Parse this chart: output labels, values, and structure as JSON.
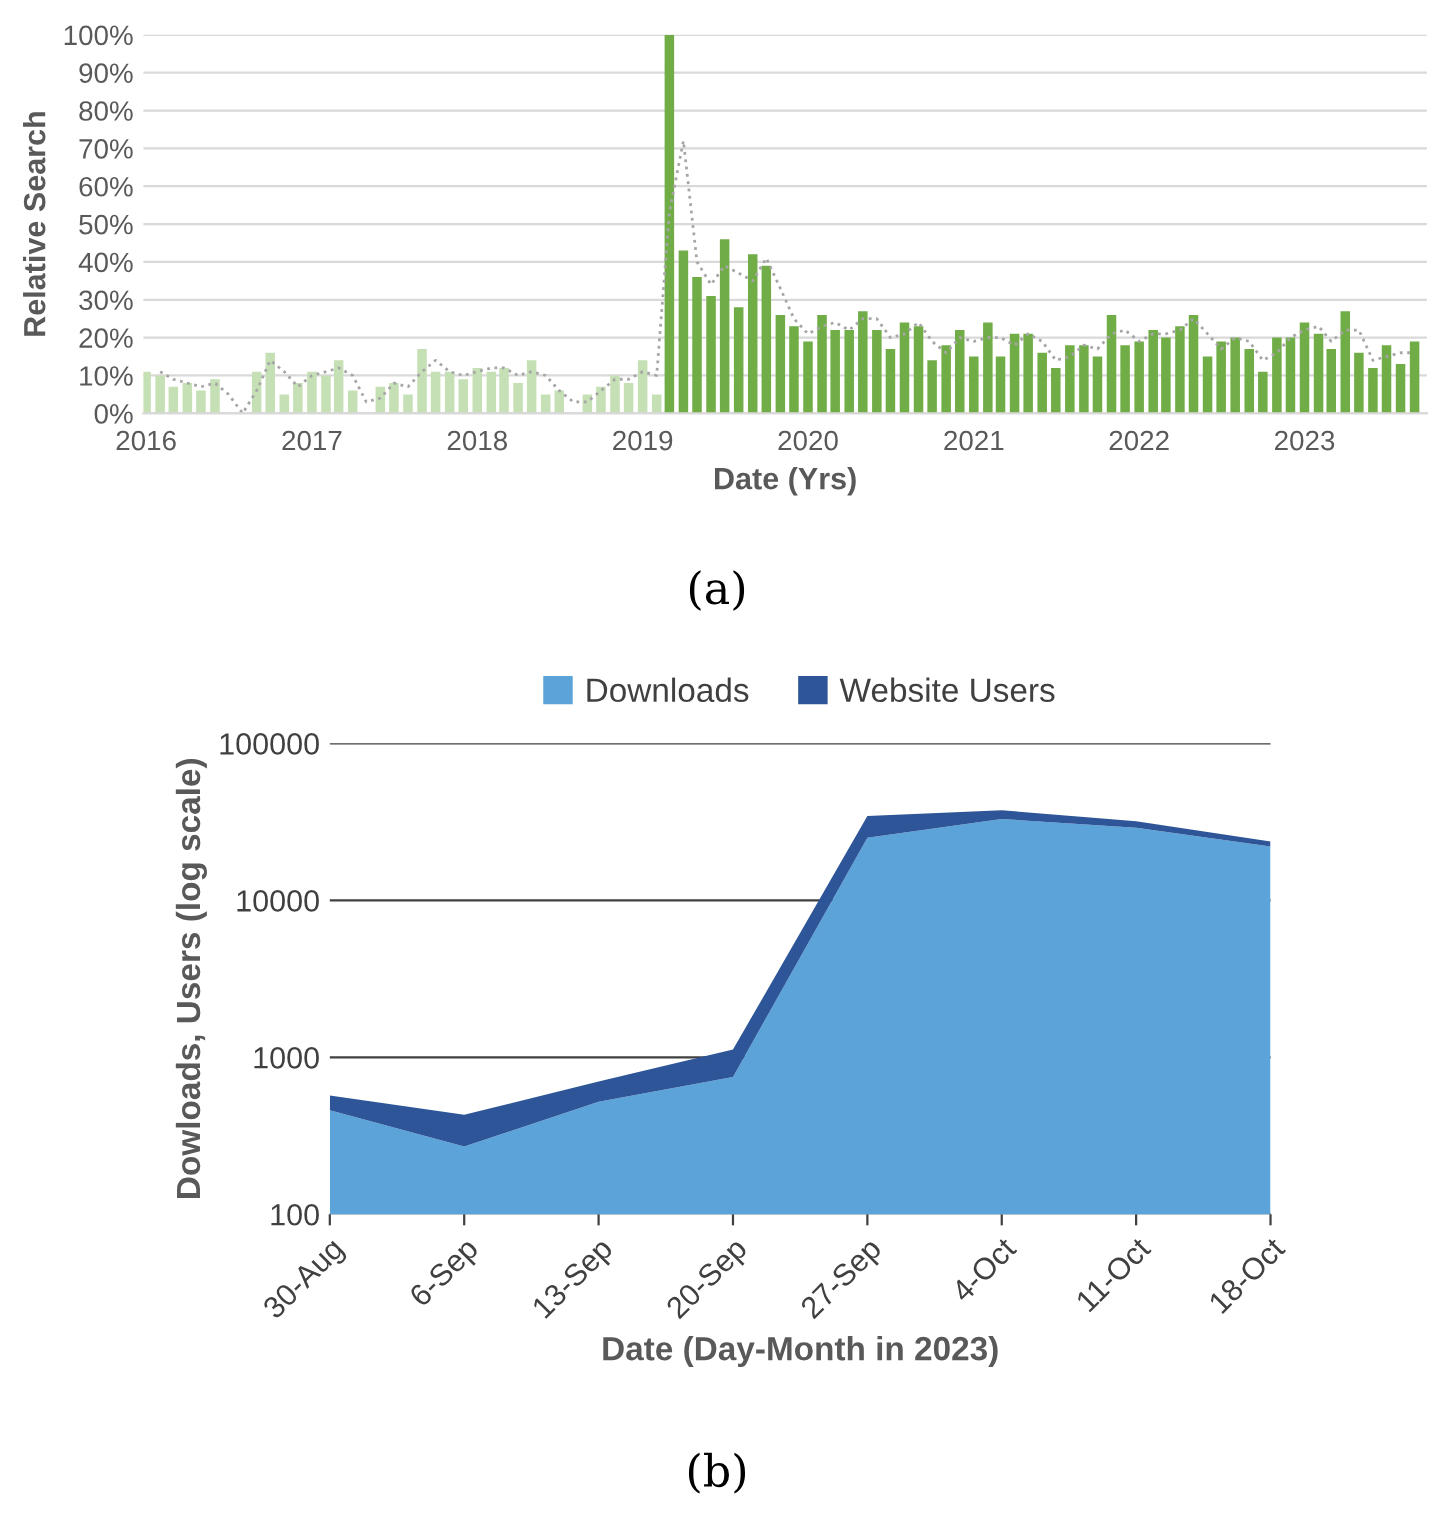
{
  "chart_data": [
    {
      "type": "bar",
      "ylabel": "Relative Search",
      "xlabel": "Date (Yrs)",
      "annotations": [
        "(a)"
      ],
      "x": [
        "2016-01",
        "2016-02",
        "2016-03",
        "2016-04",
        "2016-05",
        "2016-06",
        "2016-07",
        "2016-08",
        "2016-09",
        "2016-10",
        "2016-11",
        "2016-12",
        "2017-01",
        "2017-02",
        "2017-03",
        "2017-04",
        "2017-05",
        "2017-06",
        "2017-07",
        "2017-08",
        "2017-09",
        "2017-10",
        "2017-11",
        "2017-12",
        "2018-01",
        "2018-02",
        "2018-03",
        "2018-04",
        "2018-05",
        "2018-06",
        "2018-07",
        "2018-08",
        "2018-09",
        "2018-10",
        "2018-11",
        "2018-12",
        "2019-01",
        "2019-02",
        "2019-03",
        "2019-04",
        "2019-05",
        "2019-06",
        "2019-07",
        "2019-08",
        "2019-09",
        "2019-10",
        "2019-11",
        "2019-12",
        "2020-01",
        "2020-02",
        "2020-03",
        "2020-04",
        "2020-05",
        "2020-06",
        "2020-07",
        "2020-08",
        "2020-09",
        "2020-10",
        "2020-11",
        "2020-12",
        "2021-01",
        "2021-02",
        "2021-03",
        "2021-04",
        "2021-05",
        "2021-06",
        "2021-07",
        "2021-08",
        "2021-09",
        "2021-10",
        "2021-11",
        "2021-12",
        "2022-01",
        "2022-02",
        "2022-03",
        "2022-04",
        "2022-05",
        "2022-06",
        "2022-07",
        "2022-08",
        "2022-09",
        "2022-10",
        "2022-11",
        "2022-12",
        "2023-01",
        "2023-02",
        "2023-03",
        "2023-04",
        "2023-05",
        "2023-06",
        "2023-07",
        "2023-08",
        "2023-09"
      ],
      "series": [
        {
          "type": "bar",
          "colors": [
            "#c5e0b4",
            "#c5e0b4",
            "#c5e0b4",
            "#c5e0b4",
            "#c5e0b4",
            "#c5e0b4",
            "#c5e0b4",
            "#c5e0b4",
            "#c5e0b4",
            "#c5e0b4",
            "#c5e0b4",
            "#c5e0b4",
            "#c5e0b4",
            "#c5e0b4",
            "#c5e0b4",
            "#c5e0b4",
            "#c5e0b4",
            "#c5e0b4",
            "#c5e0b4",
            "#c5e0b4",
            "#c5e0b4",
            "#c5e0b4",
            "#c5e0b4",
            "#c5e0b4",
            "#c5e0b4",
            "#c5e0b4",
            "#c5e0b4",
            "#c5e0b4",
            "#c5e0b4",
            "#c5e0b4",
            "#c5e0b4",
            "#c5e0b4",
            "#c5e0b4",
            "#c5e0b4",
            "#c5e0b4",
            "#c5e0b4",
            "#c5e0b4",
            "#c5e0b4",
            "#70ad47",
            "#70ad47",
            "#70ad47",
            "#70ad47",
            "#70ad47",
            "#70ad47",
            "#70ad47",
            "#70ad47",
            "#70ad47",
            "#70ad47",
            "#70ad47",
            "#70ad47",
            "#70ad47",
            "#70ad47",
            "#70ad47",
            "#70ad47",
            "#70ad47",
            "#70ad47",
            "#70ad47",
            "#70ad47",
            "#70ad47",
            "#70ad47",
            "#70ad47",
            "#70ad47",
            "#70ad47",
            "#70ad47",
            "#70ad47",
            "#70ad47",
            "#70ad47",
            "#70ad47",
            "#70ad47",
            "#70ad47",
            "#70ad47",
            "#70ad47",
            "#70ad47",
            "#70ad47",
            "#70ad47",
            "#70ad47",
            "#70ad47",
            "#70ad47",
            "#70ad47",
            "#70ad47",
            "#70ad47",
            "#70ad47",
            "#70ad47",
            "#70ad47",
            "#70ad47",
            "#70ad47",
            "#70ad47",
            "#70ad47",
            "#70ad47",
            "#70ad47",
            "#70ad47",
            "#70ad47",
            "#70ad47"
          ],
          "values": [
            11,
            10,
            7,
            8,
            6,
            9,
            0,
            0,
            11,
            16,
            5,
            8,
            11,
            10,
            14,
            6,
            0,
            7,
            8,
            5,
            17,
            11,
            11,
            9,
            12,
            11,
            12,
            8,
            14,
            5,
            6,
            0,
            5,
            7,
            10,
            8,
            14,
            5,
            100,
            43,
            36,
            31,
            46,
            28,
            42,
            39,
            26,
            23,
            19,
            26,
            22,
            22,
            27,
            22,
            17,
            24,
            23,
            14,
            18,
            22,
            15,
            24,
            15,
            21,
            21,
            16,
            12,
            18,
            18,
            15,
            26,
            18,
            19,
            22,
            20,
            23,
            26,
            15,
            19,
            20,
            17,
            11,
            20,
            20,
            24,
            21,
            17,
            27,
            16,
            12,
            18,
            13,
            19
          ]
        },
        {
          "type": "line",
          "color": "#a6a6a6",
          "line_style": "dotted",
          "x": [
            "2016-02",
            "2016-03",
            "2016-04",
            "2016-05",
            "2016-06",
            "2016-07",
            "2016-08",
            "2016-09",
            "2016-10",
            "2016-11",
            "2016-12",
            "2017-01",
            "2017-02",
            "2017-03",
            "2017-04",
            "2017-05",
            "2017-06",
            "2017-07",
            "2017-08",
            "2017-09",
            "2017-10",
            "2017-11",
            "2017-12",
            "2018-01",
            "2018-02",
            "2018-03",
            "2018-04",
            "2018-05",
            "2018-06",
            "2018-07",
            "2018-08",
            "2018-09",
            "2018-10",
            "2018-11",
            "2018-12",
            "2019-01",
            "2019-02",
            "2019-03",
            "2019-04",
            "2019-05",
            "2019-06",
            "2019-07",
            "2019-08",
            "2019-09",
            "2019-10",
            "2019-11",
            "2019-12",
            "2020-01",
            "2020-02",
            "2020-03",
            "2020-04",
            "2020-05",
            "2020-06",
            "2020-07",
            "2020-08",
            "2020-09",
            "2020-10",
            "2020-11",
            "2020-12",
            "2021-01",
            "2021-02",
            "2021-03",
            "2021-04",
            "2021-05",
            "2021-06",
            "2021-07",
            "2021-08",
            "2021-09",
            "2021-10",
            "2021-11",
            "2021-12",
            "2022-01",
            "2022-02",
            "2022-03",
            "2022-04",
            "2022-05",
            "2022-06",
            "2022-07",
            "2022-08",
            "2022-09",
            "2022-10",
            "2022-11",
            "2022-12",
            "2023-01",
            "2023-02",
            "2023-03",
            "2023-04",
            "2023-05",
            "2023-06",
            "2023-07",
            "2023-08",
            "2023-09"
          ],
          "values": [
            11,
            9,
            8,
            7,
            8,
            5,
            0,
            6,
            14,
            11,
            7,
            10,
            11,
            12,
            10,
            3,
            4,
            8,
            7,
            11,
            14,
            11,
            10,
            11,
            12,
            12,
            10,
            11,
            10,
            6,
            3,
            3,
            6,
            9,
            9,
            11,
            10,
            53,
            72,
            40,
            34,
            39,
            37,
            35,
            41,
            33,
            25,
            21,
            23,
            24,
            22,
            25,
            25,
            20,
            21,
            24,
            19,
            16,
            20,
            19,
            20,
            20,
            18,
            21,
            19,
            14,
            15,
            18,
            17,
            21,
            22,
            19,
            21,
            21,
            22,
            25,
            21,
            17,
            20,
            19,
            14,
            16,
            20,
            22,
            23,
            19,
            22,
            22,
            14,
            15,
            16,
            16
          ]
        }
      ],
      "xlim": [
        "2015-12-26",
        "2023-09-28"
      ],
      "xticks": [
        {
          "value": "2016-01",
          "label": "2016"
        },
        {
          "value": "2017-01",
          "label": "2017"
        },
        {
          "value": "2018-01",
          "label": "2018"
        },
        {
          "value": "2019-01",
          "label": "2019"
        },
        {
          "value": "2020-01",
          "label": "2020"
        },
        {
          "value": "2021-01",
          "label": "2021"
        },
        {
          "value": "2022-01",
          "label": "2022"
        },
        {
          "value": "2023-01",
          "label": "2023"
        }
      ],
      "ylim": [
        0,
        100
      ],
      "yticks": [
        {
          "value": 0,
          "label": "0%"
        },
        {
          "value": 10,
          "label": "10%"
        },
        {
          "value": 20,
          "label": "20%"
        },
        {
          "value": 30,
          "label": "30%"
        },
        {
          "value": 40,
          "label": "40%"
        },
        {
          "value": 50,
          "label": "50%"
        },
        {
          "value": 60,
          "label": "60%"
        },
        {
          "value": 70,
          "label": "70%"
        },
        {
          "value": 80,
          "label": "80%"
        },
        {
          "value": 90,
          "label": "90%"
        },
        {
          "value": 100,
          "label": "100%"
        }
      ],
      "grid": "y"
    },
    {
      "type": "area",
      "stacked": true,
      "log": "y",
      "ylabel": "Dowloads, Users (log scale)",
      "xlabel": "Date (Day-Month in 2023)",
      "annotations": [
        "(b)"
      ],
      "categories": [
        "30-Aug",
        "6-Sep",
        "13-Sep",
        "20-Sep",
        "27-Sep",
        "4-Oct",
        "11-Oct",
        "18-Oct"
      ],
      "series": [
        {
          "name": "Downloads",
          "color": "#5ba3d9",
          "values": [
            460,
            270,
            520,
            750,
            25000,
            33000,
            29000,
            22000
          ]
        },
        {
          "name": "Website Users",
          "color": "#2e5597",
          "values": [
            110,
            160,
            180,
            370,
            9400,
            4500,
            2900,
            1700
          ]
        }
      ],
      "ylim": [
        100,
        100000
      ],
      "yticks": [
        100,
        1000,
        10000,
        100000
      ],
      "grid": "y",
      "legend": "top"
    }
  ]
}
